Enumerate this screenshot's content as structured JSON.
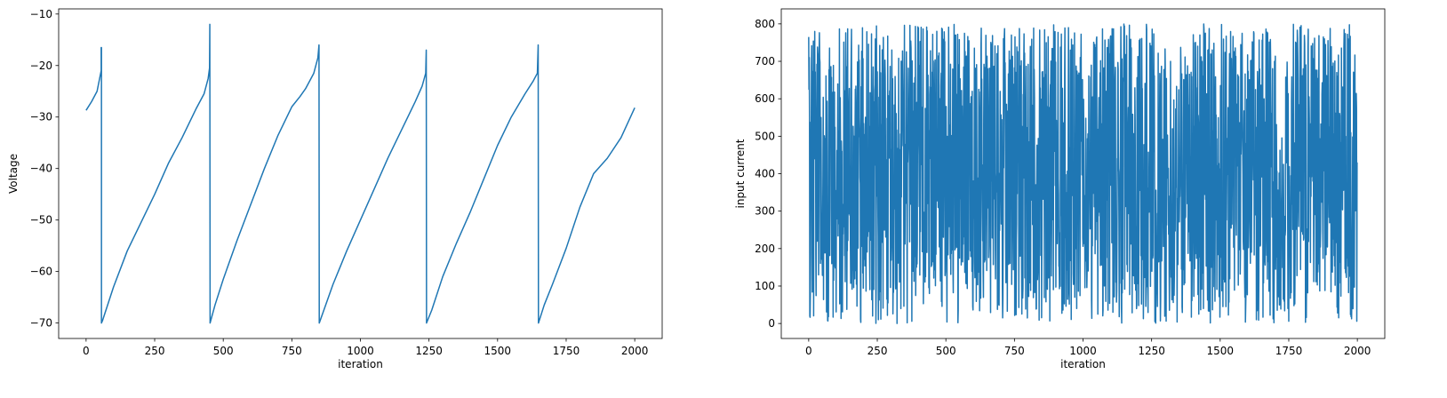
{
  "chart_data": [
    {
      "type": "line",
      "title": "",
      "xlabel": "iteration",
      "ylabel": "Voltage",
      "xlim": [
        -100,
        2100
      ],
      "ylim": [
        -73,
        -9
      ],
      "xticks": [
        0,
        250,
        500,
        750,
        1000,
        1250,
        1500,
        1750,
        2000
      ],
      "yticks": [
        -70,
        -60,
        -50,
        -40,
        -30,
        -20,
        -10
      ],
      "xtick_labels": [
        "0",
        "250",
        "500",
        "750",
        "1000",
        "1250",
        "1500",
        "1750",
        "2000"
      ],
      "ytick_labels": [
        "−70",
        "−60",
        "−50",
        "−40",
        "−30",
        "−20",
        "−10"
      ],
      "grid": false,
      "color": "#1f77b4",
      "series": [
        {
          "x": [
            0,
            20,
            40,
            55,
            55,
            56,
            56,
            60,
            100,
            150,
            200,
            250,
            300,
            350,
            400,
            430,
            445,
            450,
            451,
            451,
            452,
            452,
            470,
            500,
            550,
            600,
            650,
            700,
            750,
            780,
            800,
            830,
            845,
            849,
            849,
            850,
            850,
            870,
            900,
            950,
            1000,
            1050,
            1100,
            1150,
            1200,
            1225,
            1238,
            1240,
            1240,
            1241,
            1241,
            1260,
            1300,
            1350,
            1400,
            1450,
            1500,
            1550,
            1600,
            1630,
            1645,
            1648,
            1648,
            1649,
            1649,
            1670,
            1700,
            1750,
            1800,
            1850,
            1900,
            1950,
            2000
          ],
          "y": [
            -28.7,
            -27,
            -25,
            -21,
            -16.5,
            -16.5,
            -70,
            -69.5,
            -63,
            -56,
            -50.5,
            -45,
            -39,
            -34,
            -28.5,
            -25.5,
            -22.5,
            -20.5,
            -12,
            -12,
            -70,
            -70,
            -66.5,
            -61.5,
            -54,
            -47,
            -40,
            -33.5,
            -28,
            -26,
            -24.5,
            -21.5,
            -18.5,
            -16,
            -16,
            -70,
            -70,
            -67,
            -62.5,
            -56,
            -50,
            -44,
            -38,
            -32.5,
            -27,
            -24,
            -21.5,
            -17,
            -17,
            -70,
            -70,
            -67.5,
            -61,
            -54.5,
            -48.5,
            -42,
            -35.5,
            -30,
            -25.5,
            -23,
            -21.5,
            -16,
            -16,
            -70,
            -70,
            -66.5,
            -62.5,
            -55.5,
            -47.5,
            -41,
            -38,
            -34,
            -28.2
          ]
        }
      ]
    },
    {
      "type": "line",
      "title": "",
      "xlabel": "iteration",
      "ylabel": "input current",
      "xlim": [
        -100,
        2100
      ],
      "ylim": [
        -40,
        840
      ],
      "xticks": [
        0,
        250,
        500,
        750,
        1000,
        1250,
        1500,
        1750,
        2000
      ],
      "yticks": [
        0,
        100,
        200,
        300,
        400,
        500,
        600,
        700,
        800
      ],
      "xtick_labels": [
        "0",
        "250",
        "500",
        "750",
        "1000",
        "1250",
        "1500",
        "1750",
        "2000"
      ],
      "ytick_labels": [
        "0",
        "100",
        "200",
        "300",
        "400",
        "500",
        "600",
        "700",
        "800"
      ],
      "grid": false,
      "color": "#1f77b4",
      "series": [
        {
          "x_start": 0,
          "x_end": 1999,
          "n_points": 2000,
          "distribution": "uniform random",
          "y_min": 0,
          "y_max": 800,
          "first_values": [
            765,
            625,
            710,
            540,
            20
          ]
        }
      ]
    }
  ]
}
